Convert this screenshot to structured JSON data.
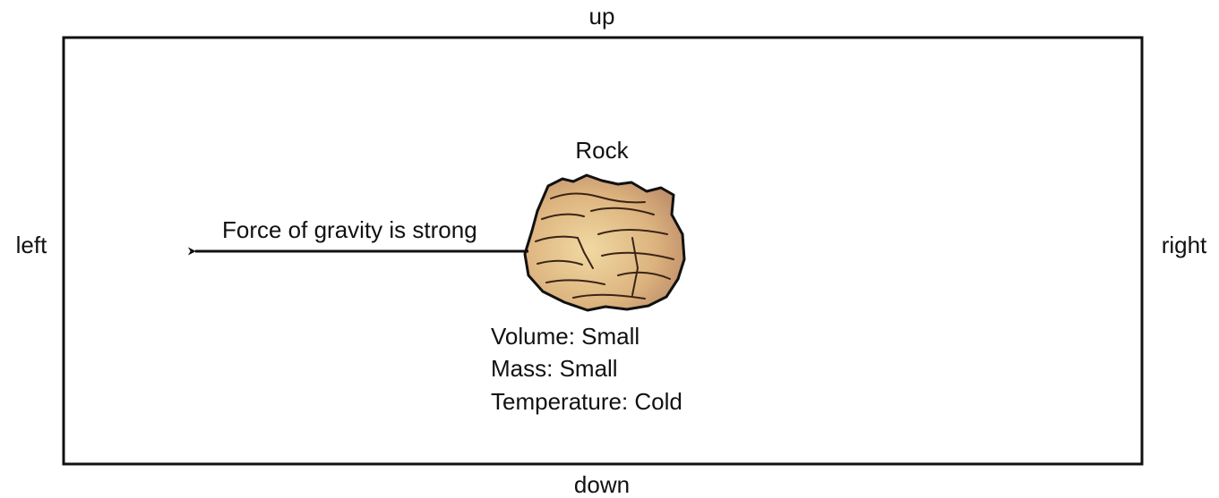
{
  "directions": {
    "up": "up",
    "down": "down",
    "left": "left",
    "right": "right"
  },
  "object": {
    "label": "Rock",
    "force_label": "Force of gravity is strong",
    "properties": [
      "Volume: Small",
      "Mass: Small",
      "Temperature: Cold"
    ]
  }
}
